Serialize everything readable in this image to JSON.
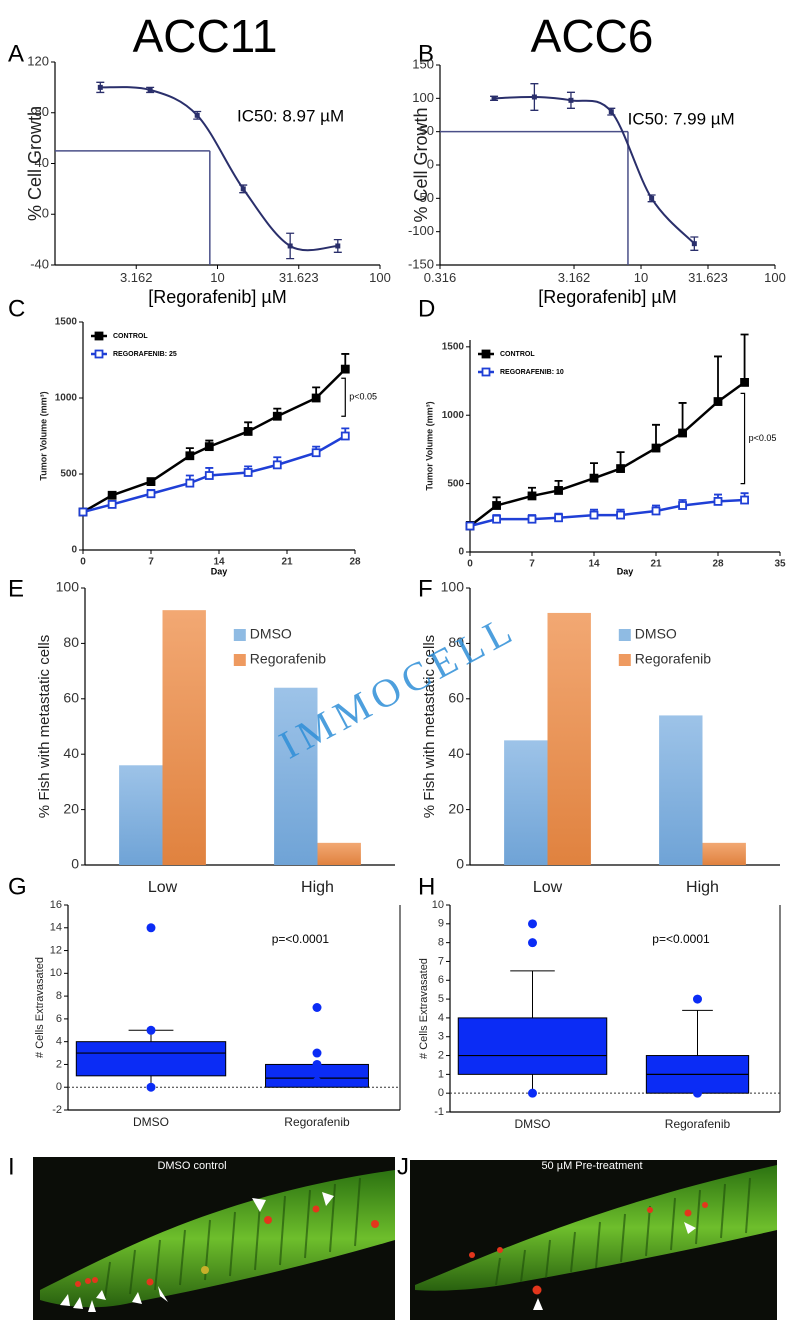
{
  "columns": [
    "ACC11",
    "ACC6"
  ],
  "watermark": "IMMOCELL",
  "chart_data": [
    {
      "type": "scatter",
      "panel": "A",
      "xlog": true,
      "xlim": [
        1,
        100
      ],
      "xticks": [
        3.162,
        10,
        31.623,
        100
      ],
      "ylim": [
        -40,
        120
      ],
      "yticks": [
        -40,
        0,
        40,
        80,
        120
      ],
      "xlabel": "[Regorafenib] µM",
      "ylabel": "% Cell Growth",
      "annotation": "IC50: 8.97 µM",
      "ic50": 8.97,
      "ic50_growth": 50,
      "color": "#2a2f6b",
      "x": [
        1.9,
        3.85,
        7.5,
        14.4,
        28,
        55
      ],
      "values": [
        100,
        98,
        78,
        20,
        -25,
        -25
      ],
      "errors": [
        4,
        2,
        3,
        3,
        10,
        5
      ]
    },
    {
      "type": "scatter",
      "panel": "B",
      "xlog": true,
      "xlim": [
        0.316,
        100
      ],
      "xticks": [
        0.316,
        3.162,
        10,
        31.623,
        100
      ],
      "ylim": [
        -150,
        150
      ],
      "yticks": [
        -150,
        -100,
        -50,
        0,
        50,
        100,
        150
      ],
      "xlabel": "[Regorafenib] µM",
      "ylabel": "% Cell Growth",
      "annotation": "IC50: 7.99 µM",
      "ic50": 7.99,
      "ic50_growth": 50,
      "color": "#2a2f6b",
      "x": [
        0.8,
        1.6,
        3,
        6,
        12,
        25
      ],
      "values": [
        100,
        102,
        97,
        80,
        -50,
        -118
      ],
      "errors": [
        3,
        20,
        12,
        5,
        5,
        10
      ]
    },
    {
      "type": "line",
      "panel": "C",
      "xlim": [
        0,
        28
      ],
      "xticks": [
        0,
        7,
        14,
        21,
        28
      ],
      "ylim": [
        0,
        1500
      ],
      "yticks": [
        0,
        500,
        1000,
        1500
      ],
      "xlabel": "Day",
      "ylabel": "Tumor Volume (mm³)",
      "annotation": "p<0.05",
      "bracket": [
        880,
        1130
      ],
      "x": [
        0,
        3,
        7,
        11,
        13,
        17,
        20,
        24,
        27
      ],
      "series": [
        {
          "name": "CONTROL",
          "color": "#000000",
          "marker": "filled",
          "values": [
            250,
            360,
            450,
            620,
            680,
            780,
            880,
            1000,
            1190
          ],
          "errors": [
            20,
            20,
            20,
            50,
            40,
            60,
            50,
            70,
            100
          ]
        },
        {
          "name": "REGORAFENIB: 25",
          "color": "#1f3fd6",
          "marker": "open",
          "values": [
            250,
            300,
            370,
            440,
            490,
            510,
            560,
            640,
            750
          ],
          "errors": [
            20,
            20,
            25,
            50,
            50,
            40,
            50,
            40,
            50
          ]
        }
      ]
    },
    {
      "type": "line",
      "panel": "D",
      "xlim": [
        0,
        35
      ],
      "xticks": [
        0,
        7,
        14,
        21,
        28,
        35
      ],
      "ylim": [
        0,
        1550
      ],
      "yticks": [
        0,
        500,
        1000,
        1500
      ],
      "xlabel": "Day",
      "ylabel": "Tumor Volume (mm³)",
      "annotation": "p<0.05",
      "bracket": [
        500,
        1160
      ],
      "x": [
        0,
        3,
        7,
        10,
        14,
        17,
        21,
        24,
        28,
        31
      ],
      "series": [
        {
          "name": "CONTROL",
          "color": "#000000",
          "marker": "filled",
          "values": [
            190,
            340,
            410,
            450,
            540,
            610,
            760,
            870,
            1100,
            1240
          ],
          "errors": [
            30,
            60,
            60,
            70,
            110,
            120,
            170,
            220,
            330,
            350
          ]
        },
        {
          "name": "REGORAFENIB: 10",
          "color": "#1f3fd6",
          "marker": "open",
          "values": [
            190,
            240,
            240,
            250,
            270,
            270,
            300,
            340,
            370,
            380
          ],
          "errors": [
            20,
            30,
            30,
            30,
            40,
            40,
            40,
            40,
            50,
            50
          ]
        }
      ]
    },
    {
      "type": "bar",
      "panel": "E",
      "categories": [
        "Low",
        "High"
      ],
      "ylim": [
        0,
        100
      ],
      "yticks": [
        0,
        20,
        40,
        60,
        80,
        100
      ],
      "ylabel": "% Fish with metastatic cells",
      "series": [
        {
          "name": "DMSO",
          "color": "#8fbbe3",
          "values": [
            36,
            64
          ]
        },
        {
          "name": "Regorafenib",
          "color": "#ee9a60",
          "values": [
            92,
            8
          ]
        }
      ]
    },
    {
      "type": "bar",
      "panel": "F",
      "categories": [
        "Low",
        "High"
      ],
      "ylim": [
        0,
        100
      ],
      "yticks": [
        0,
        20,
        40,
        60,
        80,
        100
      ],
      "ylabel": "% Fish with metastatic cells",
      "series": [
        {
          "name": "DMSO",
          "color": "#8fbbe3",
          "values": [
            45,
            54
          ]
        },
        {
          "name": "Regorafenib",
          "color": "#ee9a60",
          "values": [
            91,
            8
          ]
        }
      ]
    },
    {
      "type": "box",
      "panel": "G",
      "categories": [
        "DMSO",
        "Regorafenib"
      ],
      "ylim": [
        -2,
        16
      ],
      "yticks": [
        -2,
        0,
        2,
        4,
        6,
        8,
        10,
        12,
        14,
        16
      ],
      "ylabel": "# Cells Extravasated",
      "annotation": "p=<0.0001",
      "color": "#0b2cf5",
      "reference_line": 0,
      "boxes": [
        {
          "min": 0,
          "q1": 1,
          "median": 3,
          "q3": 4,
          "max": 5,
          "outliers": [
            14,
            5,
            0
          ]
        },
        {
          "min": 0,
          "q1": 0,
          "median": 0.8,
          "q3": 2,
          "max": 2,
          "outliers": [
            7,
            3,
            2,
            0.5
          ]
        }
      ]
    },
    {
      "type": "box",
      "panel": "H",
      "categories": [
        "DMSO",
        "Regorafenib"
      ],
      "ylim": [
        -1,
        10
      ],
      "yticks": [
        -1,
        0,
        1,
        2,
        3,
        4,
        5,
        6,
        7,
        8,
        9,
        10
      ],
      "ylabel": "# Cells Extravasated",
      "annotation": "p=<0.0001",
      "color": "#0b2cf5",
      "reference_line": 0,
      "boxes": [
        {
          "min": 0,
          "q1": 1,
          "median": 2,
          "q3": 4,
          "max": 6.5,
          "outliers": [
            9,
            8,
            0
          ]
        },
        {
          "min": 0,
          "q1": 0,
          "median": 1,
          "q3": 2,
          "max": 4.4,
          "outliers": [
            5,
            0
          ]
        }
      ]
    }
  ],
  "images": [
    {
      "panel": "I",
      "caption": "DMSO control"
    },
    {
      "panel": "J",
      "caption": "50 µM Pre-treatment"
    }
  ]
}
